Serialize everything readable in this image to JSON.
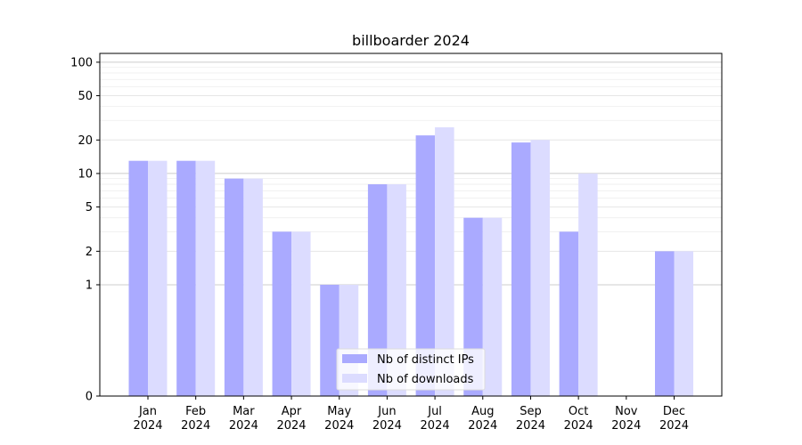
{
  "chart_data": {
    "type": "bar",
    "title": "billboarder 2024",
    "xlabel": "",
    "ylabel": "",
    "yscale": "symlog",
    "ylim": [
      0,
      120
    ],
    "yticks": [
      0,
      1,
      2,
      5,
      10,
      20,
      50,
      100
    ],
    "grid": true,
    "legend_position": "bottom-center",
    "categories": [
      [
        "Jan",
        "2024"
      ],
      [
        "Feb",
        "2024"
      ],
      [
        "Mar",
        "2024"
      ],
      [
        "Apr",
        "2024"
      ],
      [
        "May",
        "2024"
      ],
      [
        "Jun",
        "2024"
      ],
      [
        "Jul",
        "2024"
      ],
      [
        "Aug",
        "2024"
      ],
      [
        "Sep",
        "2024"
      ],
      [
        "Oct",
        "2024"
      ],
      [
        "Nov",
        "2024"
      ],
      [
        "Dec",
        "2024"
      ]
    ],
    "series": [
      {
        "name": "Nb of distinct IPs",
        "color": "#aaaaff",
        "values": [
          13,
          13,
          9,
          3,
          1,
          8,
          22,
          4,
          19,
          3,
          0,
          2
        ]
      },
      {
        "name": "Nb of downloads",
        "color": "#dcdcff",
        "values": [
          13,
          13,
          9,
          3,
          1,
          8,
          26,
          4,
          20,
          10,
          0,
          2
        ]
      }
    ]
  }
}
